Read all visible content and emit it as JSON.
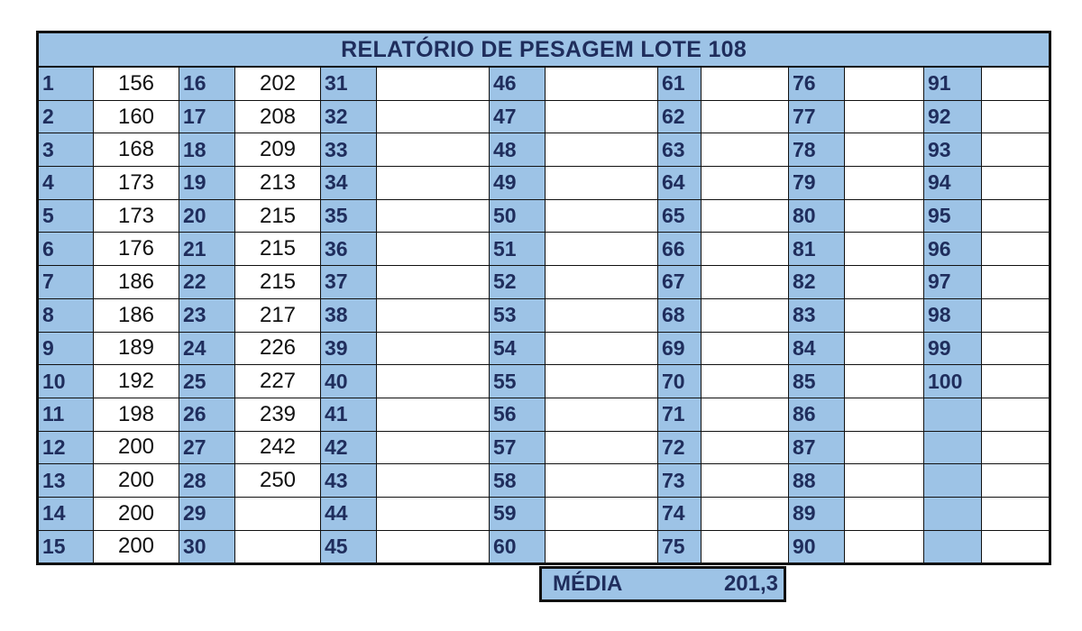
{
  "title": "RELATÓRIO DE PESAGEM LOTE 108",
  "rows": [
    {
      "c": [
        {
          "n": "1",
          "v": "156"
        },
        {
          "n": "16",
          "v": "202"
        },
        {
          "n": "31",
          "v": ""
        },
        {
          "n": "46",
          "v": ""
        },
        {
          "n": "61",
          "v": ""
        },
        {
          "n": "76",
          "v": ""
        },
        {
          "n": "91",
          "v": ""
        }
      ]
    },
    {
      "c": [
        {
          "n": "2",
          "v": "160"
        },
        {
          "n": "17",
          "v": "208"
        },
        {
          "n": "32",
          "v": ""
        },
        {
          "n": "47",
          "v": ""
        },
        {
          "n": "62",
          "v": ""
        },
        {
          "n": "77",
          "v": ""
        },
        {
          "n": "92",
          "v": ""
        }
      ]
    },
    {
      "c": [
        {
          "n": "3",
          "v": "168"
        },
        {
          "n": "18",
          "v": "209"
        },
        {
          "n": "33",
          "v": ""
        },
        {
          "n": "48",
          "v": ""
        },
        {
          "n": "63",
          "v": ""
        },
        {
          "n": "78",
          "v": ""
        },
        {
          "n": "93",
          "v": ""
        }
      ]
    },
    {
      "c": [
        {
          "n": "4",
          "v": "173"
        },
        {
          "n": "19",
          "v": "213"
        },
        {
          "n": "34",
          "v": ""
        },
        {
          "n": "49",
          "v": ""
        },
        {
          "n": "64",
          "v": ""
        },
        {
          "n": "79",
          "v": ""
        },
        {
          "n": "94",
          "v": ""
        }
      ]
    },
    {
      "c": [
        {
          "n": "5",
          "v": "173"
        },
        {
          "n": "20",
          "v": "215"
        },
        {
          "n": "35",
          "v": ""
        },
        {
          "n": "50",
          "v": ""
        },
        {
          "n": "65",
          "v": ""
        },
        {
          "n": "80",
          "v": ""
        },
        {
          "n": "95",
          "v": ""
        }
      ]
    },
    {
      "c": [
        {
          "n": "6",
          "v": "176"
        },
        {
          "n": "21",
          "v": "215"
        },
        {
          "n": "36",
          "v": ""
        },
        {
          "n": "51",
          "v": ""
        },
        {
          "n": "66",
          "v": ""
        },
        {
          "n": "81",
          "v": ""
        },
        {
          "n": "96",
          "v": ""
        }
      ]
    },
    {
      "c": [
        {
          "n": "7",
          "v": "186"
        },
        {
          "n": "22",
          "v": "215"
        },
        {
          "n": "37",
          "v": ""
        },
        {
          "n": "52",
          "v": ""
        },
        {
          "n": "67",
          "v": ""
        },
        {
          "n": "82",
          "v": ""
        },
        {
          "n": "97",
          "v": ""
        }
      ]
    },
    {
      "c": [
        {
          "n": "8",
          "v": "186"
        },
        {
          "n": "23",
          "v": "217"
        },
        {
          "n": "38",
          "v": ""
        },
        {
          "n": "53",
          "v": ""
        },
        {
          "n": "68",
          "v": ""
        },
        {
          "n": "83",
          "v": ""
        },
        {
          "n": "98",
          "v": ""
        }
      ]
    },
    {
      "c": [
        {
          "n": "9",
          "v": "189"
        },
        {
          "n": "24",
          "v": "226"
        },
        {
          "n": "39",
          "v": ""
        },
        {
          "n": "54",
          "v": ""
        },
        {
          "n": "69",
          "v": ""
        },
        {
          "n": "84",
          "v": ""
        },
        {
          "n": "99",
          "v": ""
        }
      ]
    },
    {
      "c": [
        {
          "n": "10",
          "v": "192"
        },
        {
          "n": "25",
          "v": "227"
        },
        {
          "n": "40",
          "v": ""
        },
        {
          "n": "55",
          "v": ""
        },
        {
          "n": "70",
          "v": ""
        },
        {
          "n": "85",
          "v": ""
        },
        {
          "n": "100",
          "v": ""
        }
      ]
    },
    {
      "c": [
        {
          "n": "11",
          "v": "198"
        },
        {
          "n": "26",
          "v": "239"
        },
        {
          "n": "41",
          "v": ""
        },
        {
          "n": "56",
          "v": ""
        },
        {
          "n": "71",
          "v": ""
        },
        {
          "n": "86",
          "v": ""
        },
        {
          "n": "",
          "v": ""
        }
      ]
    },
    {
      "c": [
        {
          "n": "12",
          "v": "200"
        },
        {
          "n": "27",
          "v": "242"
        },
        {
          "n": "42",
          "v": ""
        },
        {
          "n": "57",
          "v": ""
        },
        {
          "n": "72",
          "v": ""
        },
        {
          "n": "87",
          "v": ""
        },
        {
          "n": "",
          "v": ""
        }
      ]
    },
    {
      "c": [
        {
          "n": "13",
          "v": "200"
        },
        {
          "n": "28",
          "v": "250"
        },
        {
          "n": "43",
          "v": ""
        },
        {
          "n": "58",
          "v": ""
        },
        {
          "n": "73",
          "v": ""
        },
        {
          "n": "88",
          "v": ""
        },
        {
          "n": "",
          "v": ""
        }
      ]
    },
    {
      "c": [
        {
          "n": "14",
          "v": "200"
        },
        {
          "n": "29",
          "v": ""
        },
        {
          "n": "44",
          "v": ""
        },
        {
          "n": "59",
          "v": ""
        },
        {
          "n": "74",
          "v": ""
        },
        {
          "n": "89",
          "v": ""
        },
        {
          "n": "",
          "v": ""
        }
      ]
    },
    {
      "c": [
        {
          "n": "15",
          "v": "200"
        },
        {
          "n": "30",
          "v": ""
        },
        {
          "n": "45",
          "v": ""
        },
        {
          "n": "60",
          "v": ""
        },
        {
          "n": "75",
          "v": ""
        },
        {
          "n": "90",
          "v": ""
        },
        {
          "n": "",
          "v": ""
        }
      ]
    }
  ],
  "media": {
    "label": "MÉDIA",
    "value": "201,3"
  },
  "colors": {
    "header_fill": "#9dc3e6",
    "header_text": "#1f2d5c",
    "border": "#111111"
  }
}
